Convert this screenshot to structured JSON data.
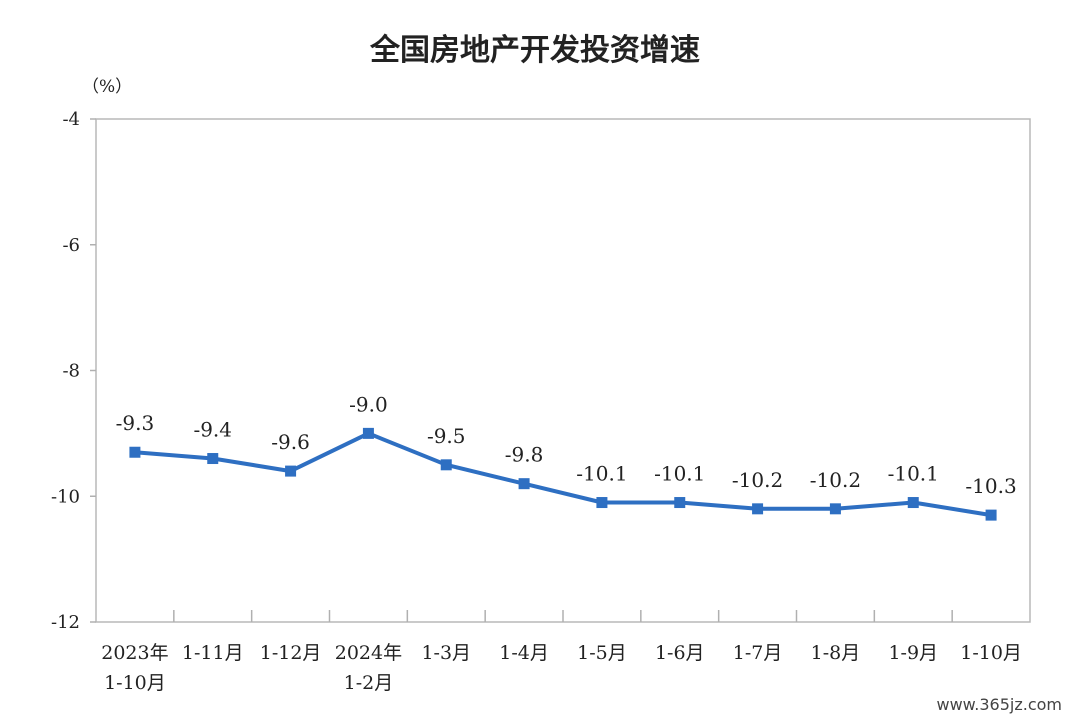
{
  "chart_data": {
    "type": "line",
    "title": "全国房地产开发投资增速",
    "unit_label": "（%）",
    "categories": [
      [
        "2023年",
        "1-10月"
      ],
      [
        "1-11月"
      ],
      [
        "1-12月"
      ],
      [
        "2024年",
        "1-2月"
      ],
      [
        "1-3月"
      ],
      [
        "1-4月"
      ],
      [
        "1-5月"
      ],
      [
        "1-6月"
      ],
      [
        "1-7月"
      ],
      [
        "1-8月"
      ],
      [
        "1-9月"
      ],
      [
        "1-10月"
      ]
    ],
    "values": [
      -9.3,
      -9.4,
      -9.6,
      -9.0,
      -9.5,
      -9.8,
      -10.1,
      -10.1,
      -10.2,
      -10.2,
      -10.1,
      -10.3
    ],
    "data_labels": [
      "-9.3",
      "-9.4",
      "-9.6",
      "-9.0",
      "-9.5",
      "-9.8",
      "-10.1",
      "-10.1",
      "-10.2",
      "-10.2",
      "-10.1",
      "-10.3"
    ],
    "ylim": [
      -12,
      -4
    ],
    "yticks": [
      -4,
      -6,
      -8,
      -10,
      -12
    ],
    "ytick_labels": [
      "-4",
      "-6",
      "-8",
      "-10",
      "-12"
    ],
    "grid": false,
    "colors": {
      "line": "#2e6fc2",
      "marker": "#2e6fc2",
      "axis": "#b0b0b0"
    }
  },
  "watermark": "www.365jz.com"
}
